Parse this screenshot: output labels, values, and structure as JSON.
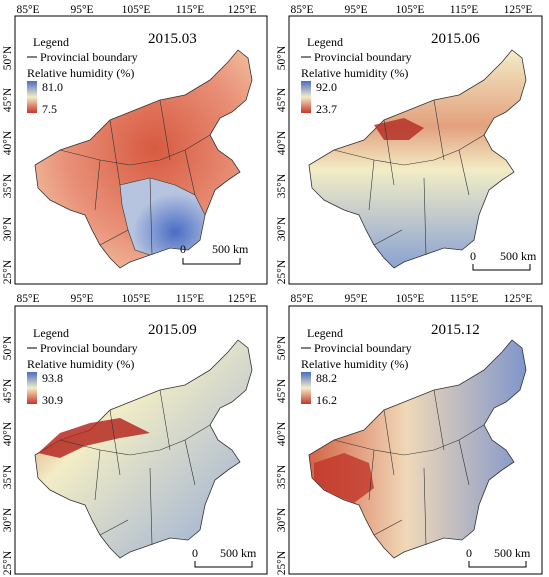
{
  "panels": [
    {
      "title": "2015.03",
      "legend": {
        "title": "Legend",
        "boundary": "Provincial boundary",
        "variable": "Relative humidity (%)",
        "max": "81.0",
        "min": "7.5"
      },
      "scalebar": {
        "zero": "0",
        "dist": "500 km"
      },
      "lon_ticks": [
        "85°E",
        "95°E",
        "105°E",
        "115°E",
        "125°E"
      ],
      "lat_ticks": [
        "50°N",
        "45°N",
        "40°N",
        "35°N",
        "30°N",
        "25°N"
      ]
    },
    {
      "title": "2015.06",
      "legend": {
        "title": "Legend",
        "boundary": "Provincial boundary",
        "variable": "Relative humidity (%)",
        "max": "92.0",
        "min": "23.7"
      },
      "scalebar": {
        "zero": "0",
        "dist": "500 km"
      },
      "lon_ticks": [
        "85°E",
        "95°E",
        "105°E",
        "115°E",
        "125°E"
      ],
      "lat_ticks": [
        "50°N",
        "45°N",
        "40°N",
        "35°N",
        "30°N",
        "25°N"
      ]
    },
    {
      "title": "2015.09",
      "legend": {
        "title": "Legend",
        "boundary": "Provincial boundary",
        "variable": "Relative humidity (%)",
        "max": "93.8",
        "min": "30.9"
      },
      "scalebar": {
        "zero": "0",
        "dist": "500 km"
      },
      "lon_ticks": [
        "85°E",
        "95°E",
        "105°E",
        "115°E",
        "125°E"
      ],
      "lat_ticks": [
        "50°N",
        "45°N",
        "40°N",
        "35°N",
        "30°N",
        "25°N"
      ]
    },
    {
      "title": "2015.12",
      "legend": {
        "title": "Legend",
        "boundary": "Provincial boundary",
        "variable": "Relative humidity (%)",
        "max": "88.2",
        "min": "16.2"
      },
      "scalebar": {
        "zero": "0",
        "dist": "500 km"
      },
      "lon_ticks": [
        "85°E",
        "95°E",
        "105°E",
        "115°E",
        "125°E"
      ],
      "lat_ticks": [
        "50°N",
        "45°N",
        "40°N",
        "35°N",
        "30°N",
        "25°N"
      ]
    }
  ],
  "colors": {
    "humid": "#4a6cc4",
    "mid": "#f2edc6",
    "dry": "#c8352a",
    "boundary": "#333333"
  }
}
